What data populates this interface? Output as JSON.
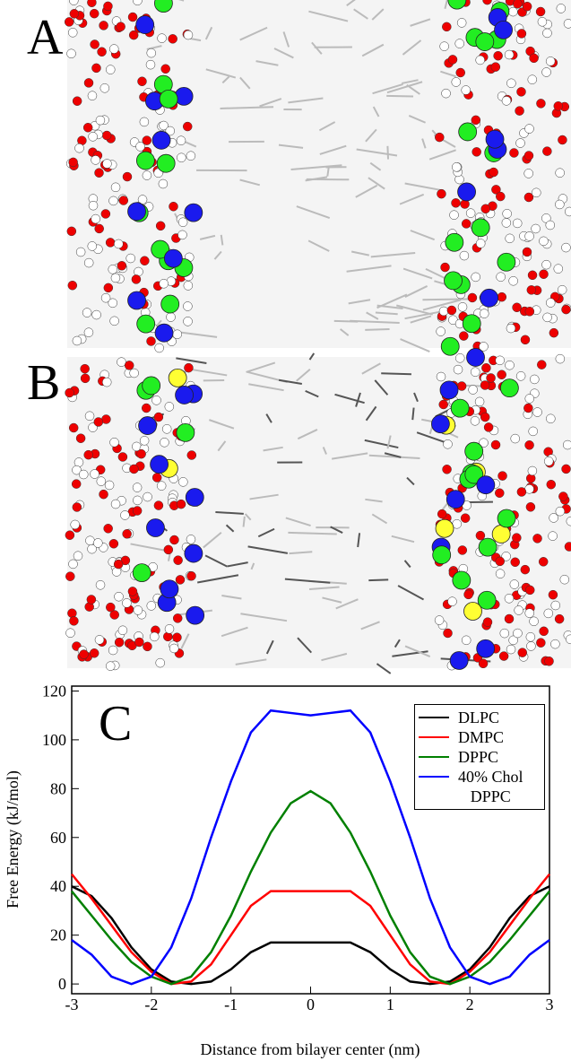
{
  "panels": {
    "a_label": "A",
    "b_label": "B"
  },
  "chart_data": {
    "type": "line",
    "panel_label": "C",
    "xlabel": "Distance from bilayer center (nm)",
    "ylabel": "Free Energy (kJ/mol)",
    "x": [
      -3,
      -2.75,
      -2.5,
      -2.25,
      -2,
      -1.75,
      -1.5,
      -1.25,
      -1,
      -0.75,
      -0.5,
      -0.25,
      0,
      0.25,
      0.5,
      0.75,
      1,
      1.25,
      1.5,
      1.75,
      2,
      2.25,
      2.5,
      2.75,
      3
    ],
    "series": [
      {
        "name": "DLPC",
        "color": "#000000",
        "values": [
          40,
          36,
          27,
          15,
          6,
          1,
          0,
          1,
          6,
          13,
          17,
          17,
          17,
          17,
          17,
          13,
          6,
          1,
          0,
          1,
          6,
          15,
          27,
          36,
          40
        ]
      },
      {
        "name": "DMPC",
        "color": "#ff0000",
        "values": [
          45,
          35,
          24,
          13,
          5,
          0,
          1,
          8,
          20,
          32,
          38,
          38,
          38,
          38,
          38,
          32,
          20,
          8,
          1,
          0,
          5,
          13,
          24,
          35,
          45
        ]
      },
      {
        "name": "DPPC",
        "color": "#008000",
        "values": [
          38,
          28,
          18,
          9,
          3,
          0,
          3,
          13,
          28,
          46,
          62,
          74,
          79,
          74,
          62,
          46,
          28,
          13,
          3,
          0,
          3,
          9,
          18,
          28,
          38
        ]
      },
      {
        "name": "40% Chol\nDPPC",
        "color": "#0000ff",
        "values": [
          18,
          12,
          3,
          0,
          3,
          15,
          35,
          60,
          83,
          103,
          112,
          111,
          110,
          111,
          112,
          103,
          83,
          60,
          35,
          15,
          3,
          0,
          3,
          12,
          18
        ]
      }
    ],
    "xlim": [
      -3,
      3
    ],
    "xticks": [
      -3,
      -2,
      -1,
      0,
      1,
      2,
      3
    ],
    "ylim": [
      -4,
      122
    ],
    "yticks": [
      0,
      20,
      40,
      60,
      80,
      100,
      120
    ],
    "legend": "upper right"
  }
}
